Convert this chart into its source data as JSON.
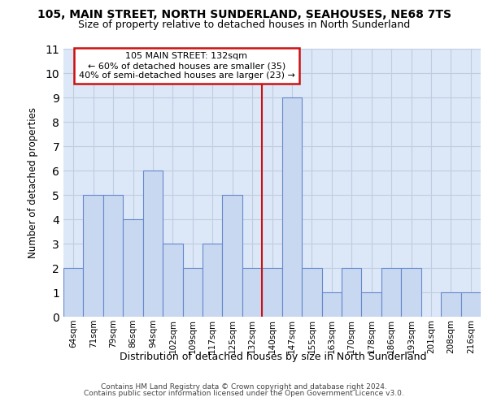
{
  "title_line1": "105, MAIN STREET, NORTH SUNDERLAND, SEAHOUSES, NE68 7TS",
  "title_line2": "Size of property relative to detached houses in North Sunderland",
  "xlabel": "Distribution of detached houses by size in North Sunderland",
  "ylabel": "Number of detached properties",
  "categories": [
    "64sqm",
    "71sqm",
    "79sqm",
    "86sqm",
    "94sqm",
    "102sqm",
    "109sqm",
    "117sqm",
    "125sqm",
    "132sqm",
    "140sqm",
    "147sqm",
    "155sqm",
    "163sqm",
    "170sqm",
    "178sqm",
    "186sqm",
    "193sqm",
    "201sqm",
    "208sqm",
    "216sqm"
  ],
  "values": [
    2,
    5,
    5,
    4,
    6,
    3,
    2,
    3,
    5,
    2,
    2,
    9,
    2,
    1,
    2,
    1,
    2,
    2,
    0,
    1,
    1
  ],
  "bar_color": "#c8d8f0",
  "bar_edge_color": "#6688cc",
  "grid_color": "#c0cce0",
  "background_color": "#dce8f8",
  "vline_index": 9,
  "vline_color": "#cc1111",
  "annotation_text": "105 MAIN STREET: 132sqm\n← 60% of detached houses are smaller (35)\n40% of semi-detached houses are larger (23) →",
  "annotation_box_edge_color": "#cc1111",
  "ylim": [
    0,
    11
  ],
  "yticks": [
    0,
    1,
    2,
    3,
    4,
    5,
    6,
    7,
    8,
    9,
    10,
    11
  ],
  "footer_line1": "Contains HM Land Registry data © Crown copyright and database right 2024.",
  "footer_line2": "Contains public sector information licensed under the Open Government Licence v3.0."
}
